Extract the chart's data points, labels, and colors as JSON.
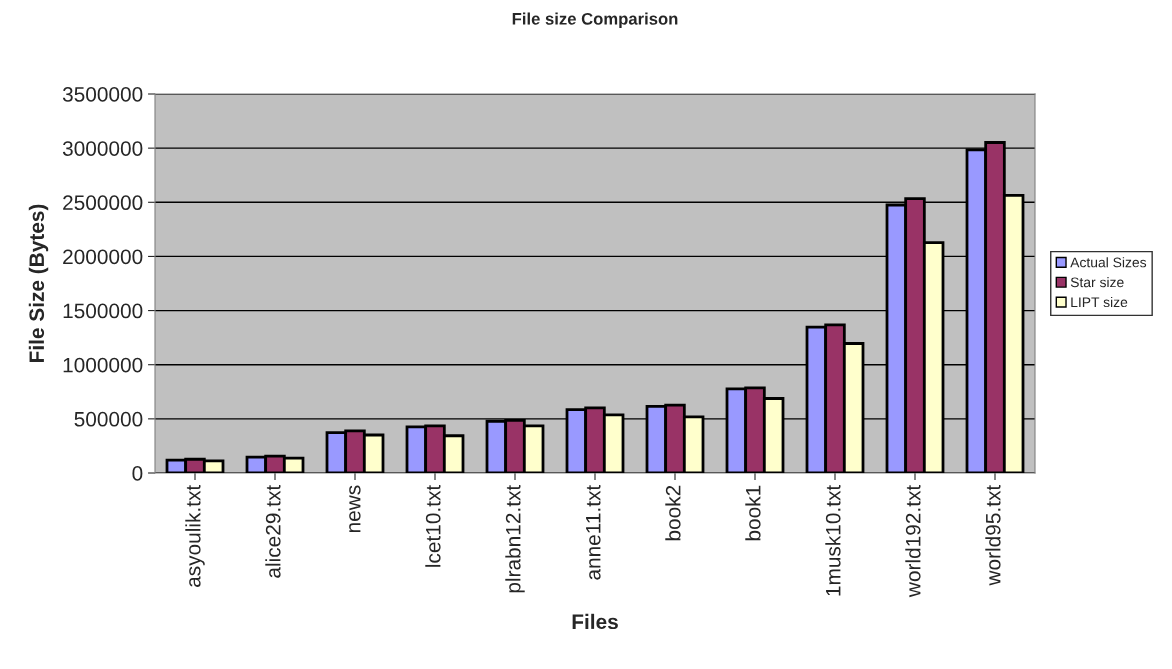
{
  "chart_data": {
    "type": "bar",
    "title": "File size Comparison",
    "xlabel": "Files",
    "ylabel": "File Size (Bytes)",
    "categories": [
      "asyoulik.txt",
      "alice29.txt",
      "news",
      "lcet10.txt",
      "plrabn12.txt",
      "anne11.txt",
      "book2",
      "book1",
      "1musk10.txt",
      "world192.txt",
      "world95.txt"
    ],
    "series": [
      {
        "name": "Actual Sizes",
        "color": "#9999ff",
        "values": [
          118000,
          146000,
          372000,
          425000,
          478000,
          586000,
          616000,
          776000,
          1347000,
          2475000,
          2984000
        ]
      },
      {
        "name": "Star size",
        "color": "#993366",
        "values": [
          127000,
          155000,
          388000,
          435000,
          487000,
          601000,
          626000,
          786000,
          1368000,
          2533000,
          3052000
        ]
      },
      {
        "name": "LIPT size",
        "color": "#ffffcc",
        "values": [
          111000,
          137000,
          351000,
          344000,
          435000,
          536000,
          518000,
          688000,
          1196000,
          2127000,
          2563000
        ]
      }
    ],
    "ylim": [
      0,
      3500000
    ],
    "yticks": [
      0,
      500000,
      1000000,
      1500000,
      2000000,
      2500000,
      3000000,
      3500000
    ],
    "grid": "y",
    "legend": "right"
  }
}
